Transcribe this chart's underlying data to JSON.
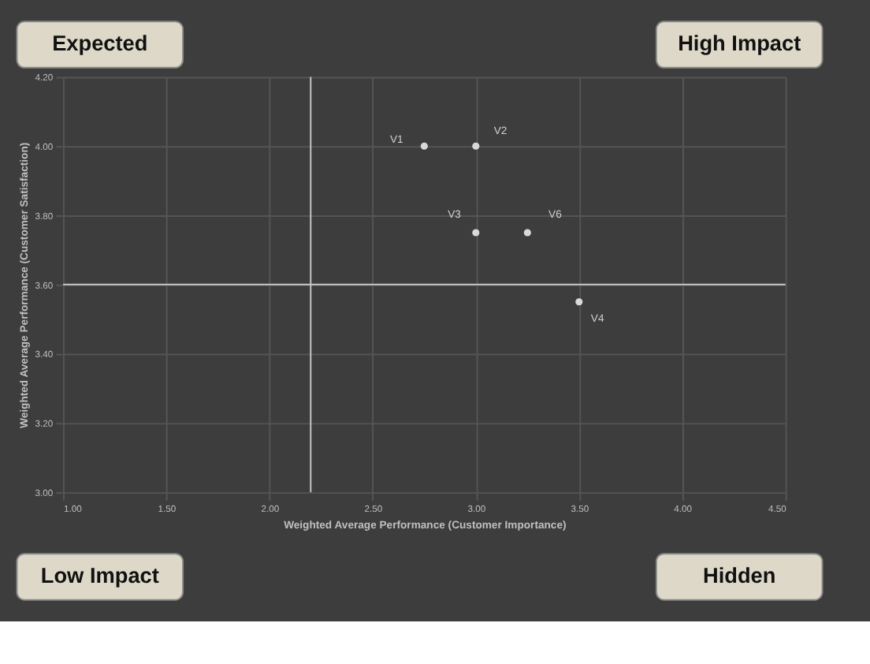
{
  "chart_data": {
    "type": "scatter",
    "xlabel": "Weighted Average Performance (Customer Importance)",
    "ylabel": "Weighted Average Performance (Customer Satisfaction)",
    "x": [
      2.75,
      3.0,
      3.0,
      3.25,
      3.5
    ],
    "series": [
      {
        "color": "#d9d9d9",
        "values": [
          4.0,
          4.0,
          3.75,
          3.75,
          3.55
        ]
      }
    ],
    "xlim": [
      1.0,
      4.5
    ],
    "xticks": [
      {
        "value": 1.0,
        "label": "1.00"
      },
      {
        "value": 1.5,
        "label": "1.50"
      },
      {
        "value": 2.0,
        "label": "2.00"
      },
      {
        "value": 2.5,
        "label": "2.50"
      },
      {
        "value": 3.0,
        "label": "3.00"
      },
      {
        "value": 3.5,
        "label": "3.50"
      },
      {
        "value": 4.0,
        "label": "4.00"
      },
      {
        "value": 4.5,
        "label": "4.50"
      }
    ],
    "ylim": [
      3.0,
      4.2
    ],
    "yticks": [
      {
        "value": 3.0,
        "label": "3.00"
      },
      {
        "value": 3.2,
        "label": "3.20"
      },
      {
        "value": 3.4,
        "label": "3.40"
      },
      {
        "value": 3.6,
        "label": "3.60"
      },
      {
        "value": 3.8,
        "label": "3.80"
      },
      {
        "value": 4.0,
        "label": "4.00"
      },
      {
        "value": 4.2,
        "label": "4.20"
      }
    ],
    "ref_lines": [
      {
        "axis": "x",
        "value": 2.2,
        "color": "#c8c8c8"
      },
      {
        "axis": "y",
        "value": 3.6,
        "color": "#c8c8c8"
      }
    ],
    "annotations": [
      "Expected",
      "High Impact",
      "Low Impact",
      "Hidden",
      {
        "text": "V1",
        "x": 2.75,
        "y": 4.0
      },
      {
        "text": "V2",
        "x": 3.0,
        "y": 4.0
      },
      {
        "text": "V3",
        "x": 3.0,
        "y": 3.75
      },
      {
        "text": "V6",
        "x": 3.25,
        "y": 3.75
      },
      {
        "text": "V4",
        "x": 3.5,
        "y": 3.55
      }
    ],
    "grid": true,
    "marker": "circle"
  }
}
